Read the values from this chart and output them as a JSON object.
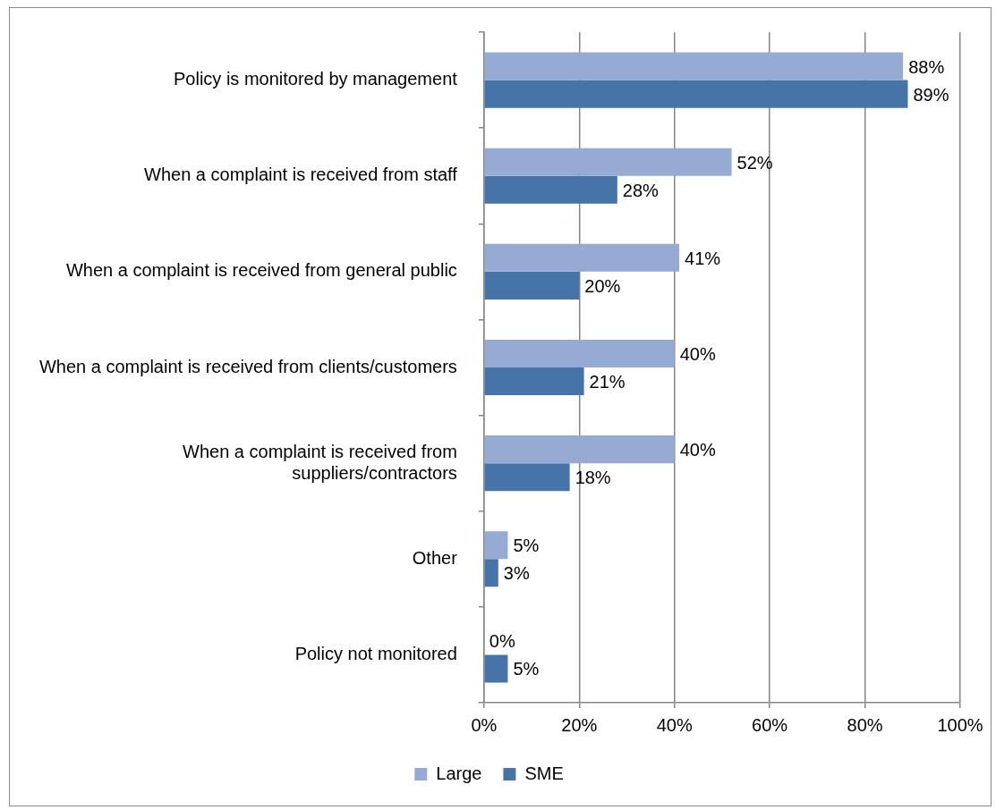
{
  "chart_data": {
    "type": "bar",
    "orientation": "horizontal",
    "categories": [
      "Policy is monitored by management",
      "When a complaint is received from staff",
      "When a complaint is received from general public",
      "When a complaint is received from clients/customers",
      "When a complaint is received from suppliers/contractors",
      "Other",
      "Policy not monitored"
    ],
    "series": [
      {
        "name": "Large",
        "color": "#95abd4",
        "values": [
          88,
          52,
          41,
          40,
          40,
          5,
          0
        ],
        "value_labels": [
          "88%",
          "52%",
          "41%",
          "40%",
          "40%",
          "5%",
          "0%"
        ]
      },
      {
        "name": "SME",
        "color": "#4673a8",
        "values": [
          89,
          28,
          20,
          21,
          18,
          3,
          5
        ],
        "value_labels": [
          "89%",
          "28%",
          "20%",
          "21%",
          "18%",
          "3%",
          "5%"
        ]
      }
    ],
    "xlim": [
      0,
      100
    ],
    "xticks": [
      {
        "value": 0,
        "label": "0%"
      },
      {
        "value": 20,
        "label": "20%"
      },
      {
        "value": 40,
        "label": "40%"
      },
      {
        "value": 60,
        "label": "60%"
      },
      {
        "value": 80,
        "label": "80%"
      },
      {
        "value": 100,
        "label": "100%"
      }
    ],
    "grid": "x",
    "legend": "bottom"
  }
}
